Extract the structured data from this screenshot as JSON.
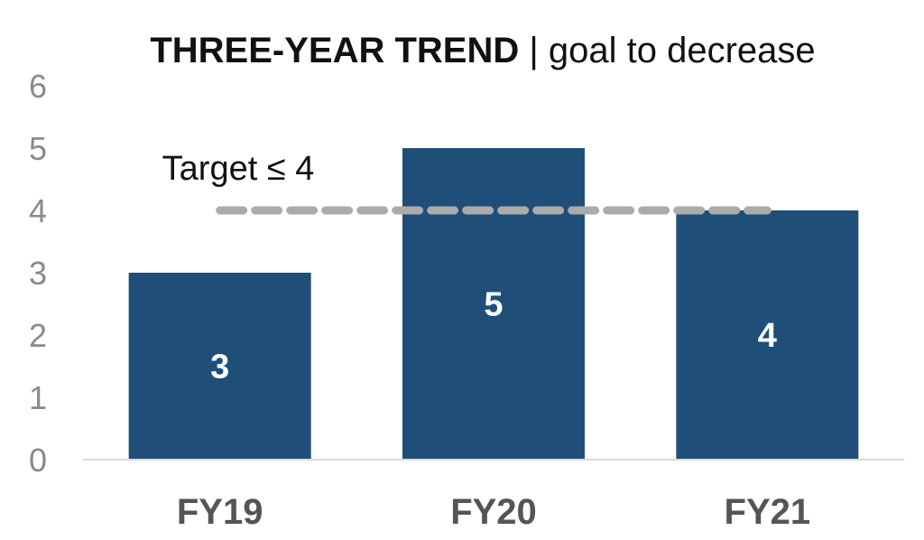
{
  "title_main": "THREE-YEAR TREND",
  "title_sub": "| goal to decrease",
  "target_label": "Target ≤ 4",
  "colors": {
    "bar": "#1f4e79",
    "target_line": "#ababab",
    "axis": "#d9d9d9"
  },
  "chart_data": {
    "type": "bar",
    "title": "THREE-YEAR TREND | goal to decrease",
    "categories": [
      "FY19",
      "FY20",
      "FY21"
    ],
    "values": [
      3,
      5,
      4
    ],
    "ylim": [
      0,
      6
    ],
    "yticks": [
      0,
      1,
      2,
      3,
      4,
      5,
      6
    ],
    "target": 4,
    "grid": false,
    "legend": "none",
    "xlabel": "",
    "ylabel": ""
  }
}
